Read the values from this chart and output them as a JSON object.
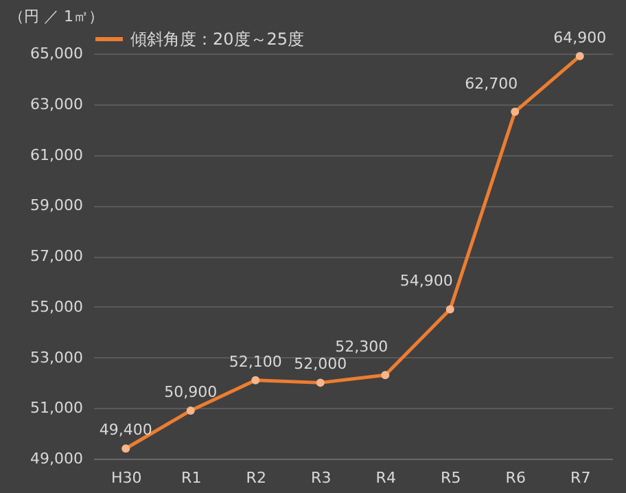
{
  "chart_data": {
    "type": "line",
    "ylabel": "（円 ／ 1㎡）",
    "categories": [
      "H30",
      "R1",
      "R2",
      "R3",
      "R4",
      "R5",
      "R6",
      "R7"
    ],
    "series": [
      {
        "name": "傾斜角度：20度～25度",
        "color": "#ed7d31",
        "values": [
          49400,
          50900,
          52100,
          52000,
          52300,
          54900,
          62700,
          64900
        ]
      }
    ],
    "ylim": [
      49000,
      65000
    ],
    "yticks": [
      {
        "value": 49000,
        "label": "49,000"
      },
      {
        "value": 51000,
        "label": "51,000"
      },
      {
        "value": 53000,
        "label": "53,000"
      },
      {
        "value": 55000,
        "label": "55,000"
      },
      {
        "value": 57000,
        "label": "57,000"
      },
      {
        "value": 59000,
        "label": "59,000"
      },
      {
        "value": 61000,
        "label": "61,000"
      },
      {
        "value": 63000,
        "label": "63,000"
      },
      {
        "value": 65000,
        "label": "65,000"
      }
    ],
    "value_labels": [
      "49,400",
      "50,900",
      "52,100",
      "52,000",
      "52,300",
      "54,900",
      "62,700",
      "64,900"
    ],
    "grid": "y",
    "legend": "top",
    "marker": "circle",
    "line_style": "solid"
  }
}
